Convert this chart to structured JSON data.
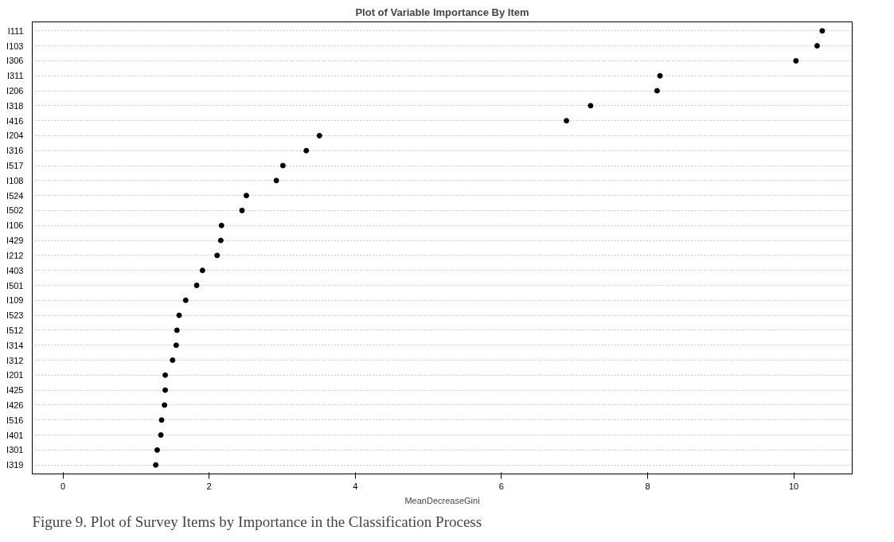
{
  "chart_data": {
    "type": "scatter",
    "title": "Plot of Variable Importance By Item",
    "xlabel": "MeanDecreaseGini",
    "categories": [
      "I111",
      "I103",
      "I306",
      "I311",
      "I206",
      "I318",
      "I416",
      "I204",
      "I316",
      "I517",
      "I108",
      "I524",
      "I502",
      "I106",
      "I429",
      "I212",
      "I403",
      "I501",
      "I109",
      "I523",
      "I512",
      "I314",
      "I312",
      "I201",
      "I425",
      "I426",
      "I516",
      "I401",
      "I301",
      "I319"
    ],
    "series": [
      {
        "color": "#000000",
        "values": [
          10.39,
          10.32,
          10.03,
          8.17,
          8.13,
          7.22,
          6.89,
          3.51,
          3.33,
          3.01,
          2.92,
          2.51,
          2.45,
          2.17,
          2.16,
          2.11,
          1.91,
          1.83,
          1.68,
          1.59,
          1.56,
          1.55,
          1.5,
          1.4,
          1.4,
          1.39,
          1.35,
          1.34,
          1.29,
          1.27
        ]
      }
    ],
    "orientation": "horizontal",
    "xlim": [
      -0.42,
      10.8
    ],
    "xticks": [
      0,
      2,
      4,
      6,
      8,
      10
    ],
    "grid": "y",
    "marker": "circle",
    "annotations": [
      "Figure 9. Plot of Survey Items by Importance in the Classification Process"
    ]
  }
}
